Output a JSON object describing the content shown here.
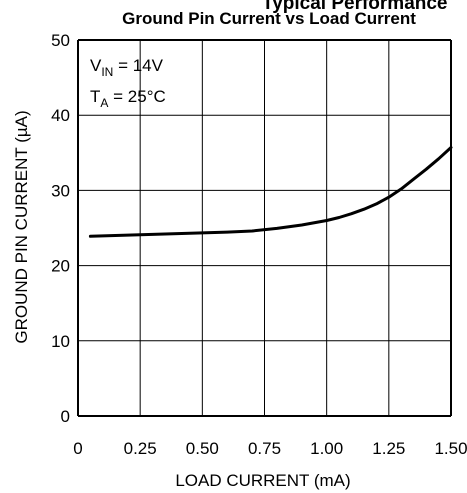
{
  "chart_data": {
    "type": "line",
    "header_fragment": "Typical Performance",
    "title": "Ground Pin Current vs Load Current",
    "xlabel": "LOAD CURRENT (mA)",
    "ylabel": "GROUND PIN CURRENT (µA)",
    "xlim": [
      0,
      1.5
    ],
    "ylim": [
      0,
      50
    ],
    "x_ticks": [
      "0",
      "0.25",
      "0.50",
      "0.75",
      "1.00",
      "1.25",
      "1.50"
    ],
    "y_ticks": [
      "0",
      "10",
      "20",
      "30",
      "40",
      "50"
    ],
    "grid": true,
    "annotations": {
      "vin": {
        "sym": "V",
        "sub": "IN",
        "rest": " = 14V"
      },
      "ta": {
        "sym": "T",
        "sub": "A",
        "rest": " = 25°C"
      }
    },
    "series": [
      {
        "x": [
          0.05,
          0.1,
          0.2,
          0.3,
          0.4,
          0.5,
          0.6,
          0.7,
          0.8,
          0.9,
          1.0,
          1.05,
          1.1,
          1.15,
          1.2,
          1.25,
          1.3,
          1.35,
          1.4,
          1.45,
          1.5
        ],
        "y": [
          23.9,
          23.95,
          24.05,
          24.15,
          24.25,
          24.35,
          24.45,
          24.6,
          24.95,
          25.4,
          26.0,
          26.4,
          26.9,
          27.5,
          28.2,
          29.1,
          30.2,
          31.5,
          32.8,
          34.2,
          35.7
        ]
      }
    ]
  }
}
